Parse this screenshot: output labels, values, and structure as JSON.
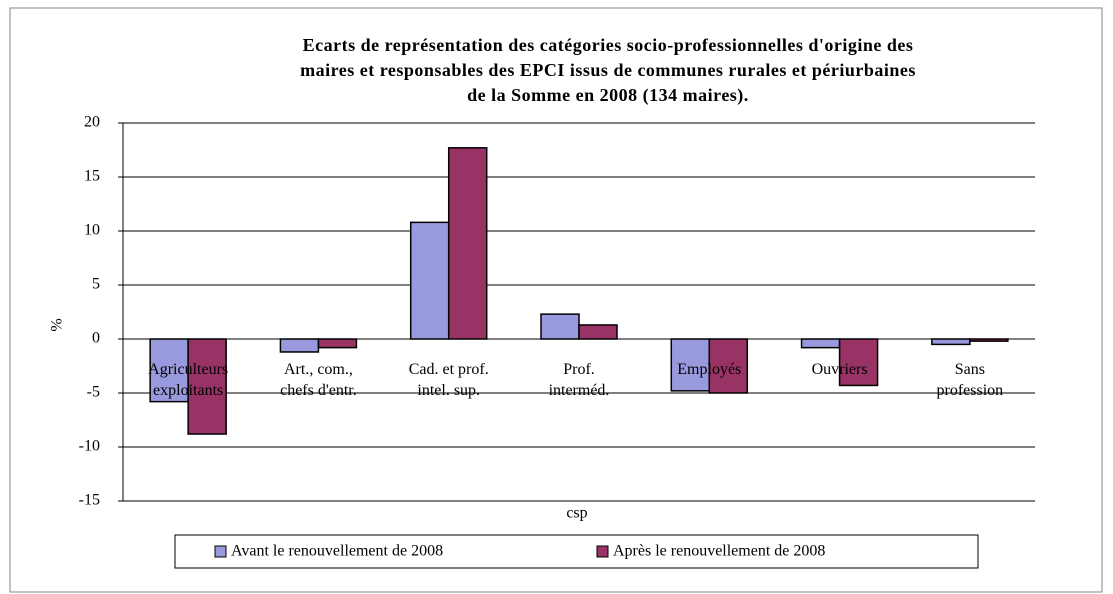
{
  "chart_data": {
    "type": "bar",
    "title": [
      "Ecarts de représentation des catégories socio-professionnelles d'origine des",
      "maires et responsables des EPCI issus de communes rurales et périurbaines",
      "de la Somme en 2008 (134 maires)."
    ],
    "x_label": "csp",
    "y_label": "%",
    "categories": [
      "Agriculteurs\nexploitants",
      "Art., com.,\nchefs d'entr.",
      "Cad. et prof.\nintel. sup.",
      "Prof.\ninterméd.",
      "Employés",
      "Ouvriers",
      "Sans\nprofession"
    ],
    "series": [
      {
        "name": "Avant le renouvellement de 2008",
        "color": "#9999dd",
        "values": [
          -5.8,
          -1.2,
          10.8,
          2.3,
          -4.8,
          -0.8,
          -0.5
        ]
      },
      {
        "name": "Après le renouvellement de 2008",
        "color": "#993366",
        "values": [
          -8.8,
          -0.8,
          17.7,
          1.3,
          -5.0,
          -4.3,
          -0.2
        ]
      }
    ],
    "ylim": [
      -15,
      20
    ],
    "yticks": [
      -15,
      -10,
      -5,
      0,
      5,
      10,
      15,
      20
    ],
    "grid": true,
    "legend": "bottom"
  }
}
